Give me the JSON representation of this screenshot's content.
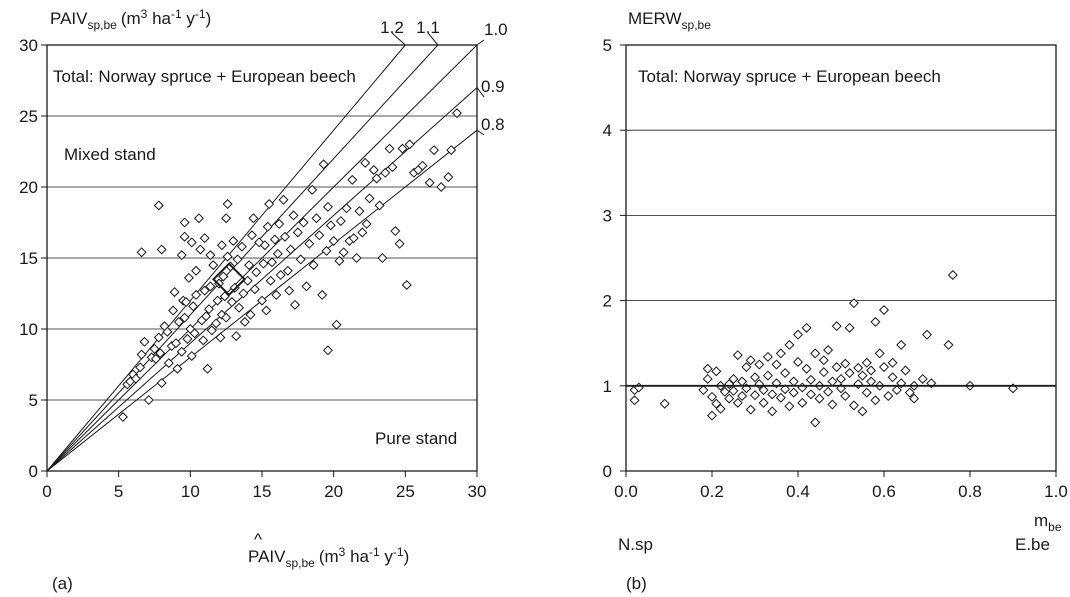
{
  "chart_data": [
    {
      "panel_label": "(a)",
      "type": "scatter",
      "ylabel": "PAIV",
      "ylabel_sub": "sp,be",
      "ylabel_units": "(m3 ha-1 y-1)",
      "xlabel": "PAIV",
      "xlabel_hat": "^",
      "xlabel_sub": "sp,be",
      "xlabel_units": "(m3 ha-1 y-1)",
      "xlim": [
        0,
        30
      ],
      "ylim": [
        0,
        30
      ],
      "xticks": [
        "0",
        "5",
        "10",
        "15",
        "20",
        "25",
        "30"
      ],
      "yticks": [
        "0",
        "5",
        "10",
        "15",
        "20",
        "25",
        "30"
      ],
      "grid": "horizontal",
      "annotations": {
        "total": "Total: Norway spruce + European beech",
        "mixed": "Mixed stand",
        "pure": "Pure stand"
      },
      "reference_lines": [
        {
          "slope": 1.2,
          "label": "1.2"
        },
        {
          "slope": 1.1,
          "label": "1.1"
        },
        {
          "slope": 1.0,
          "label": "1.0"
        },
        {
          "slope": 0.9,
          "label": "0.9"
        },
        {
          "slope": 0.8,
          "label": "0.8"
        }
      ],
      "mean_marker": {
        "x": 12.7,
        "y": 13.5
      },
      "points": [
        [
          5.3,
          3.8
        ],
        [
          5.6,
          6.1
        ],
        [
          5.8,
          6.3
        ],
        [
          6.0,
          6.8
        ],
        [
          6.2,
          6.5
        ],
        [
          6.5,
          7.3
        ],
        [
          6.6,
          8.2
        ],
        [
          6.8,
          9.1
        ],
        [
          6.6,
          15.4
        ],
        [
          7.1,
          5.0
        ],
        [
          7.3,
          8.0
        ],
        [
          7.5,
          8.6
        ],
        [
          7.6,
          7.9
        ],
        [
          7.8,
          9.4
        ],
        [
          7.9,
          8.3
        ],
        [
          8.0,
          6.2
        ],
        [
          8.2,
          10.2
        ],
        [
          8.4,
          9.8
        ],
        [
          7.8,
          18.7
        ],
        [
          8.0,
          15.6
        ],
        [
          8.5,
          7.6
        ],
        [
          8.7,
          8.8
        ],
        [
          8.8,
          11.3
        ],
        [
          8.9,
          12.6
        ],
        [
          9.0,
          9.0
        ],
        [
          9.1,
          7.2
        ],
        [
          9.2,
          10.5
        ],
        [
          9.4,
          8.4
        ],
        [
          9.5,
          12.0
        ],
        [
          9.6,
          10.8
        ],
        [
          9.7,
          11.9
        ],
        [
          9.4,
          15.2
        ],
        [
          9.6,
          16.5
        ],
        [
          9.6,
          17.5
        ],
        [
          9.8,
          9.3
        ],
        [
          9.9,
          13.6
        ],
        [
          10.0,
          10.0
        ],
        [
          10.1,
          8.1
        ],
        [
          10.2,
          11.6
        ],
        [
          10.3,
          9.7
        ],
        [
          10.4,
          12.4
        ],
        [
          10.4,
          14.1
        ],
        [
          10.1,
          16.1
        ],
        [
          10.6,
          17.8
        ],
        [
          10.7,
          15.6
        ],
        [
          10.8,
          10.6
        ],
        [
          10.9,
          9.2
        ],
        [
          11.0,
          12.7
        ],
        [
          11.1,
          10.9
        ],
        [
          11.2,
          7.2
        ],
        [
          11.3,
          11.4
        ],
        [
          11.4,
          13.0
        ],
        [
          11.5,
          9.9
        ],
        [
          11.6,
          14.5
        ],
        [
          11.0,
          16.4
        ],
        [
          11.4,
          15.2
        ],
        [
          11.8,
          10.4
        ],
        [
          11.9,
          12.0
        ],
        [
          12.0,
          13.2
        ],
        [
          12.1,
          9.4
        ],
        [
          12.2,
          15.9
        ],
        [
          12.2,
          11.0
        ],
        [
          12.3,
          13.7
        ],
        [
          12.4,
          12.3
        ],
        [
          12.5,
          10.8
        ],
        [
          12.5,
          17.8
        ],
        [
          12.6,
          18.8
        ],
        [
          12.6,
          15.1
        ],
        [
          12.8,
          14.4
        ],
        [
          12.9,
          11.9
        ],
        [
          13.0,
          16.2
        ],
        [
          13.1,
          12.9
        ],
        [
          13.2,
          9.5
        ],
        [
          13.3,
          14.9
        ],
        [
          13.4,
          11.5
        ],
        [
          13.6,
          15.8
        ],
        [
          13.7,
          12.5
        ],
        [
          13.8,
          10.5
        ],
        [
          14.0,
          13.4
        ],
        [
          14.1,
          14.5
        ],
        [
          14.2,
          11.0
        ],
        [
          14.3,
          16.6
        ],
        [
          14.4,
          17.8
        ],
        [
          14.5,
          12.8
        ],
        [
          14.6,
          14.0
        ],
        [
          14.8,
          16.1
        ],
        [
          15.0,
          12.0
        ],
        [
          15.1,
          14.6
        ],
        [
          15.2,
          15.9
        ],
        [
          15.3,
          11.3
        ],
        [
          15.4,
          17.2
        ],
        [
          15.5,
          18.8
        ],
        [
          15.6,
          13.4
        ],
        [
          15.7,
          14.7
        ],
        [
          15.9,
          16.3
        ],
        [
          16.0,
          12.4
        ],
        [
          16.1,
          15.3
        ],
        [
          16.2,
          17.4
        ],
        [
          16.3,
          13.8
        ],
        [
          16.5,
          19.1
        ],
        [
          16.6,
          16.5
        ],
        [
          16.8,
          14.1
        ],
        [
          16.9,
          12.7
        ],
        [
          17.0,
          15.6
        ],
        [
          17.2,
          18.0
        ],
        [
          17.3,
          11.7
        ],
        [
          17.5,
          16.8
        ],
        [
          17.7,
          14.9
        ],
        [
          17.9,
          17.5
        ],
        [
          18.1,
          13.0
        ],
        [
          18.3,
          16.0
        ],
        [
          18.5,
          19.8
        ],
        [
          18.6,
          14.5
        ],
        [
          18.8,
          17.8
        ],
        [
          19.0,
          16.6
        ],
        [
          19.2,
          12.4
        ],
        [
          19.3,
          21.6
        ],
        [
          19.5,
          15.5
        ],
        [
          19.6,
          18.6
        ],
        [
          19.8,
          17.3
        ],
        [
          19.6,
          8.5
        ],
        [
          20.0,
          16.2
        ],
        [
          20.2,
          10.3
        ],
        [
          20.4,
          14.8
        ],
        [
          20.5,
          17.6
        ],
        [
          20.7,
          15.4
        ],
        [
          20.9,
          18.5
        ],
        [
          21.1,
          16.2
        ],
        [
          21.3,
          20.5
        ],
        [
          21.4,
          16.4
        ],
        [
          21.6,
          15.0
        ],
        [
          21.8,
          18.3
        ],
        [
          22.0,
          16.8
        ],
        [
          22.2,
          21.7
        ],
        [
          22.3,
          17.4
        ],
        [
          22.5,
          19.2
        ],
        [
          22.8,
          21.2
        ],
        [
          23.0,
          20.6
        ],
        [
          23.2,
          18.7
        ],
        [
          23.4,
          15.0
        ],
        [
          23.6,
          21.0
        ],
        [
          23.9,
          22.7
        ],
        [
          24.1,
          21.4
        ],
        [
          24.3,
          16.9
        ],
        [
          24.6,
          16.0
        ],
        [
          24.8,
          22.7
        ],
        [
          25.1,
          13.1
        ],
        [
          25.3,
          23.0
        ],
        [
          25.6,
          21.0
        ],
        [
          25.9,
          21.2
        ],
        [
          26.2,
          21.5
        ],
        [
          26.7,
          20.3
        ],
        [
          27.0,
          22.6
        ],
        [
          27.5,
          20.0
        ],
        [
          28.0,
          20.7
        ],
        [
          28.2,
          22.6
        ],
        [
          28.6,
          25.2
        ]
      ]
    },
    {
      "panel_label": "(b)",
      "type": "scatter",
      "ylabel": "MERW",
      "ylabel_sub": "sp,be",
      "xlabel": "m",
      "xlabel_sub": "be",
      "xlim": [
        0,
        1
      ],
      "ylim": [
        0,
        5
      ],
      "xticks": [
        "0.0",
        "0.2",
        "0.4",
        "0.6",
        "0.8",
        "1.0"
      ],
      "yticks": [
        "0",
        "1",
        "2",
        "3",
        "4",
        "5"
      ],
      "grid": "horizontal",
      "annotations": {
        "total": "Total: Norway spruce + European beech",
        "left_end": "N.sp",
        "right_end": "E.be"
      },
      "reference_lines": [
        {
          "y": 1.0
        }
      ],
      "points": [
        [
          0.02,
          0.95
        ],
        [
          0.02,
          0.83
        ],
        [
          0.03,
          0.98
        ],
        [
          0.09,
          0.79
        ],
        [
          0.18,
          0.95
        ],
        [
          0.19,
          1.2
        ],
        [
          0.19,
          1.08
        ],
        [
          0.2,
          0.87
        ],
        [
          0.2,
          0.65
        ],
        [
          0.21,
          0.79
        ],
        [
          0.21,
          1.17
        ],
        [
          0.22,
          1.0
        ],
        [
          0.22,
          0.73
        ],
        [
          0.23,
          0.93
        ],
        [
          0.24,
          1.02
        ],
        [
          0.24,
          0.85
        ],
        [
          0.25,
          1.08
        ],
        [
          0.25,
          0.94
        ],
        [
          0.26,
          1.36
        ],
        [
          0.26,
          0.8
        ],
        [
          0.27,
          1.05
        ],
        [
          0.27,
          0.88
        ],
        [
          0.28,
          1.22
        ],
        [
          0.28,
          0.97
        ],
        [
          0.29,
          1.3
        ],
        [
          0.29,
          0.72
        ],
        [
          0.3,
          1.1
        ],
        [
          0.3,
          0.89
        ],
        [
          0.31,
          1.02
        ],
        [
          0.31,
          1.25
        ],
        [
          0.32,
          0.8
        ],
        [
          0.32,
          0.95
        ],
        [
          0.33,
          1.34
        ],
        [
          0.33,
          1.12
        ],
        [
          0.34,
          0.7
        ],
        [
          0.34,
          0.9
        ],
        [
          0.35,
          1.25
        ],
        [
          0.35,
          1.03
        ],
        [
          0.36,
          0.86
        ],
        [
          0.36,
          1.38
        ],
        [
          0.37,
          0.96
        ],
        [
          0.37,
          1.15
        ],
        [
          0.38,
          0.76
        ],
        [
          0.38,
          1.48
        ],
        [
          0.39,
          1.05
        ],
        [
          0.39,
          0.92
        ],
        [
          0.4,
          1.28
        ],
        [
          0.4,
          1.6
        ],
        [
          0.41,
          0.98
        ],
        [
          0.41,
          0.8
        ],
        [
          0.42,
          1.2
        ],
        [
          0.42,
          1.68
        ],
        [
          0.43,
          0.9
        ],
        [
          0.43,
          1.07
        ],
        [
          0.44,
          0.57
        ],
        [
          0.44,
          1.38
        ],
        [
          0.45,
          1.0
        ],
        [
          0.45,
          0.85
        ],
        [
          0.46,
          1.16
        ],
        [
          0.46,
          1.3
        ],
        [
          0.47,
          0.93
        ],
        [
          0.47,
          1.42
        ],
        [
          0.48,
          1.05
        ],
        [
          0.48,
          0.78
        ],
        [
          0.49,
          1.22
        ],
        [
          0.49,
          1.7
        ],
        [
          0.5,
          0.97
        ],
        [
          0.5,
          1.08
        ],
        [
          0.51,
          1.26
        ],
        [
          0.51,
          0.88
        ],
        [
          0.52,
          1.68
        ],
        [
          0.52,
          1.15
        ],
        [
          0.53,
          1.97
        ],
        [
          0.53,
          0.77
        ],
        [
          0.54,
          1.02
        ],
        [
          0.54,
          1.21
        ],
        [
          0.55,
          0.7
        ],
        [
          0.55,
          1.12
        ],
        [
          0.56,
          0.92
        ],
        [
          0.56,
          1.27
        ],
        [
          0.57,
          1.05
        ],
        [
          0.57,
          1.18
        ],
        [
          0.58,
          0.83
        ],
        [
          0.58,
          1.75
        ],
        [
          0.59,
          1.38
        ],
        [
          0.59,
          1.0
        ],
        [
          0.6,
          1.89
        ],
        [
          0.6,
          1.22
        ],
        [
          0.61,
          0.88
        ],
        [
          0.62,
          1.1
        ],
        [
          0.62,
          1.27
        ],
        [
          0.63,
          0.95
        ],
        [
          0.64,
          1.03
        ],
        [
          0.64,
          1.48
        ],
        [
          0.65,
          1.18
        ],
        [
          0.66,
          0.92
        ],
        [
          0.67,
          1.0
        ],
        [
          0.67,
          0.85
        ],
        [
          0.69,
          1.08
        ],
        [
          0.7,
          1.6
        ],
        [
          0.71,
          1.03
        ],
        [
          0.75,
          1.48
        ],
        [
          0.76,
          2.3
        ],
        [
          0.8,
          1.0
        ],
        [
          0.9,
          0.97
        ]
      ]
    }
  ]
}
